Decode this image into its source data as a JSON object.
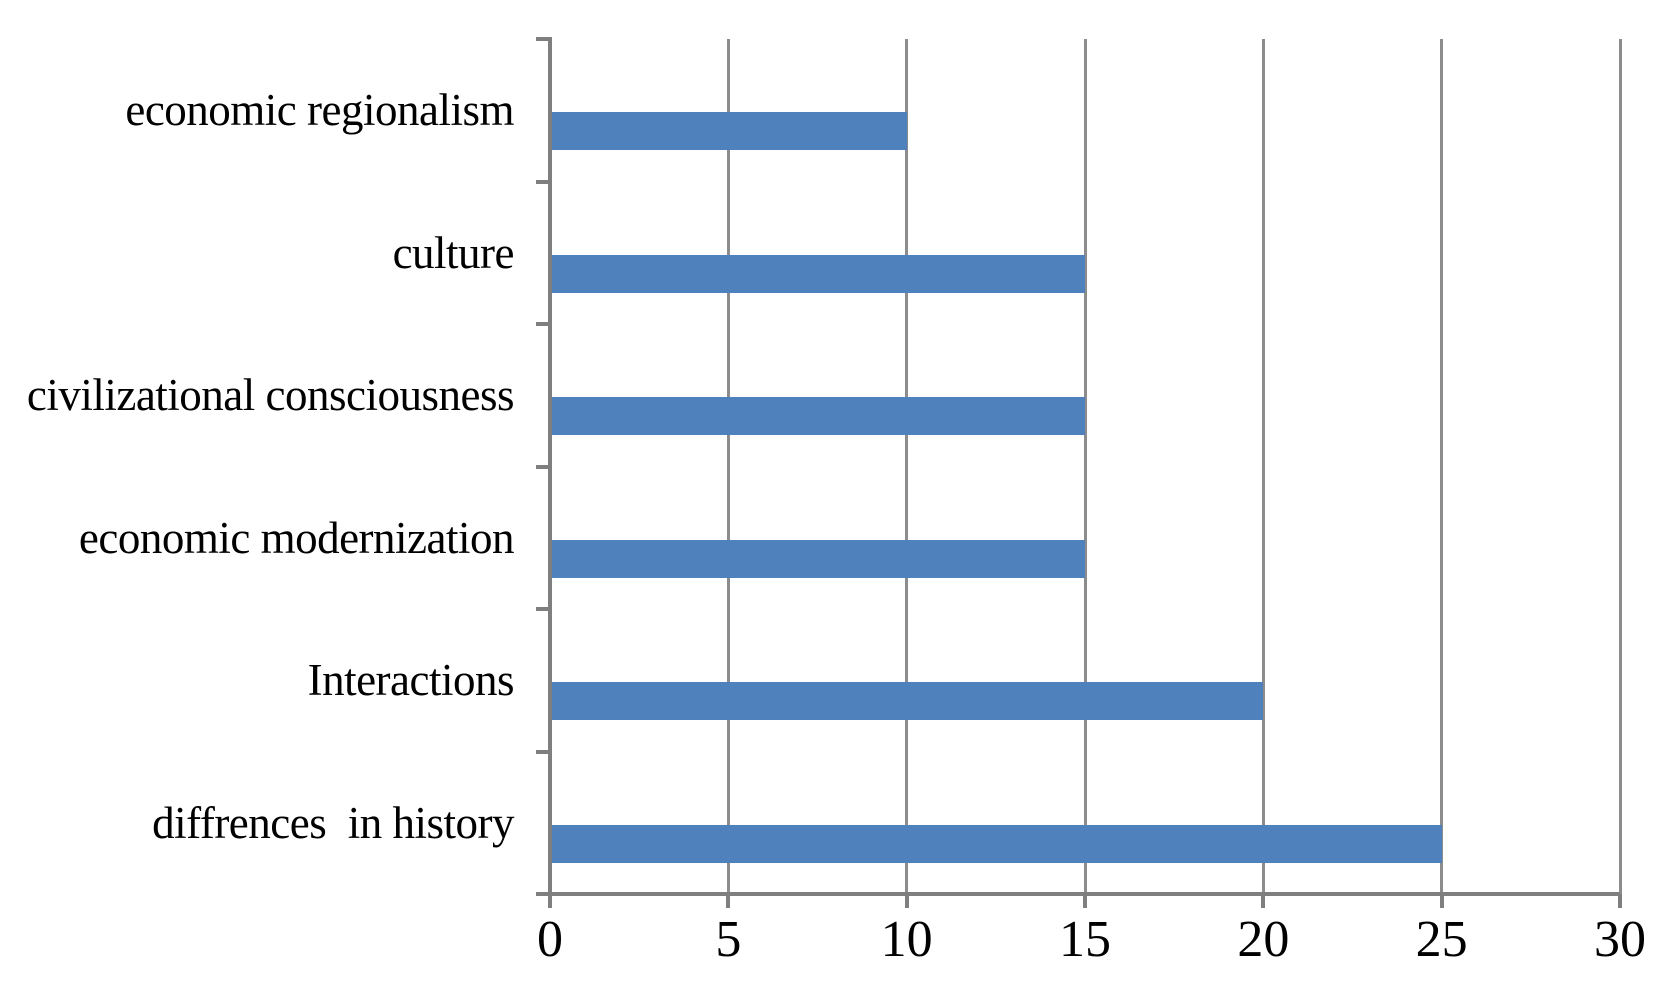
{
  "chart_data": {
    "type": "bar",
    "orientation": "horizontal",
    "title": "",
    "xlabel": "",
    "ylabel": "",
    "categories": [
      "economic regionalism",
      "culture",
      "civilizational consciousness",
      "economic modernization",
      "Interactions",
      "diffrences  in history"
    ],
    "values": [
      10,
      15,
      15,
      15,
      20,
      25
    ],
    "x_ticks": [
      0,
      5,
      10,
      15,
      20,
      25,
      30
    ],
    "x_tick_labels": [
      "0",
      "5",
      "10",
      "15",
      "20",
      "25",
      "30"
    ],
    "xlim": [
      0,
      30
    ],
    "grid": "vertical-major",
    "legend": "none",
    "colors": {
      "bar": "#4F81BD",
      "gridline": "#8C8C8C",
      "axis": "#7F7F7F",
      "text": "#000000",
      "background": "#FFFFFF"
    }
  }
}
